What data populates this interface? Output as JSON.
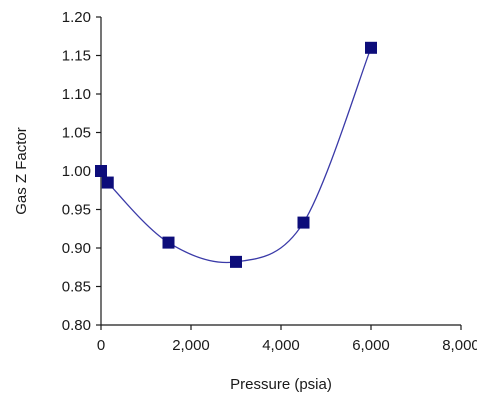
{
  "chart_data": {
    "type": "scatter",
    "title": "",
    "xlabel": "Pressure (psia)",
    "ylabel": "Gas Z Factor",
    "xlim": [
      0,
      8000
    ],
    "ylim": [
      0.8,
      1.2
    ],
    "x_ticks": [
      0,
      2000,
      4000,
      6000,
      8000
    ],
    "x_tick_labels": [
      "0",
      "2,000",
      "4,000",
      "6,000",
      "8,000"
    ],
    "y_ticks": [
      0.8,
      0.85,
      0.9,
      0.95,
      1.0,
      1.05,
      1.1,
      1.15,
      1.2
    ],
    "y_tick_labels": [
      "0.80",
      "0.85",
      "0.90",
      "0.95",
      "1.00",
      "1.05",
      "1.10",
      "1.15",
      "1.20"
    ],
    "grid": false,
    "legend": "none",
    "series": [
      {
        "marker": "square",
        "color": "#0d0d7a",
        "line_color": "#3a3aa8",
        "line": "smooth",
        "x": [
          0,
          150,
          1500,
          3000,
          4500,
          6000
        ],
        "y": [
          1.0,
          0.985,
          0.907,
          0.882,
          0.933,
          1.16
        ]
      }
    ]
  }
}
